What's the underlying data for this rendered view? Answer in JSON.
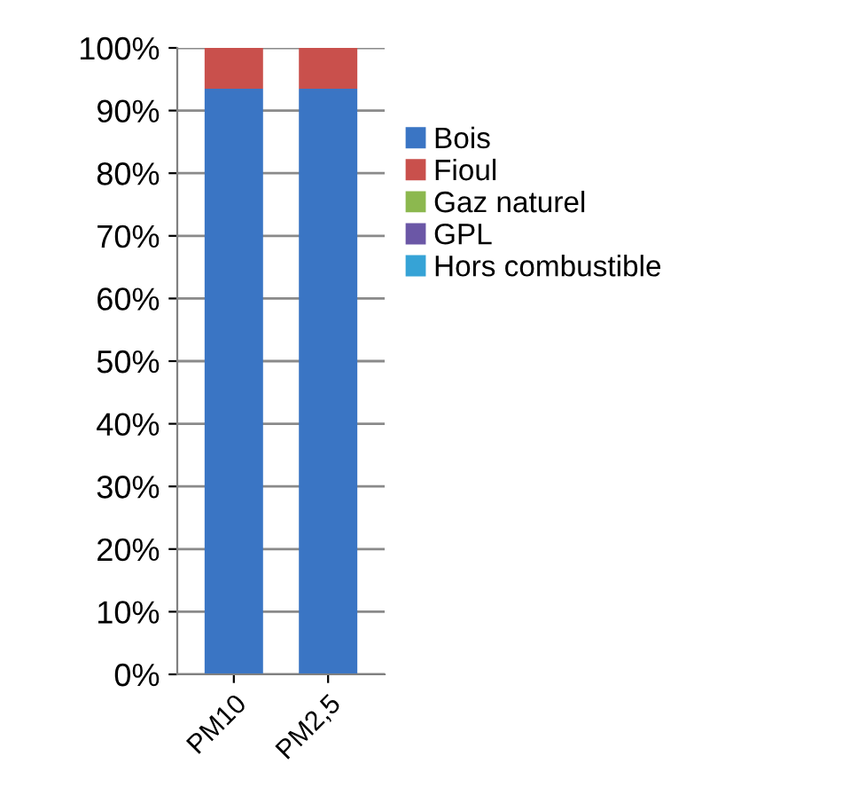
{
  "chart_data": {
    "type": "bar",
    "stacked": true,
    "categories": [
      "PM10",
      "PM2,5"
    ],
    "series": [
      {
        "name": "Bois",
        "color": "#3a75c4",
        "values": [
          93.5,
          93.5
        ]
      },
      {
        "name": "Fioul",
        "color": "#c9504c",
        "values": [
          6.5,
          6.5
        ]
      },
      {
        "name": "Gaz naturel",
        "color": "#8cb84f",
        "values": [
          0,
          0
        ]
      },
      {
        "name": "GPL",
        "color": "#6b57a6",
        "values": [
          0,
          0
        ]
      },
      {
        "name": "Hors combustible",
        "color": "#36a3d6",
        "values": [
          0,
          0
        ]
      }
    ],
    "ylim": [
      0,
      100
    ],
    "yticks": [
      {
        "value": 0,
        "label": "0%"
      },
      {
        "value": 10,
        "label": "10%"
      },
      {
        "value": 20,
        "label": "20%"
      },
      {
        "value": 30,
        "label": "30%"
      },
      {
        "value": 40,
        "label": "40%"
      },
      {
        "value": 50,
        "label": "50%"
      },
      {
        "value": 60,
        "label": "60%"
      },
      {
        "value": 70,
        "label": "70%"
      },
      {
        "value": 80,
        "label": "80%"
      },
      {
        "value": 90,
        "label": "90%"
      },
      {
        "value": 100,
        "label": "100%"
      }
    ],
    "grid": "y",
    "legend": "right"
  }
}
